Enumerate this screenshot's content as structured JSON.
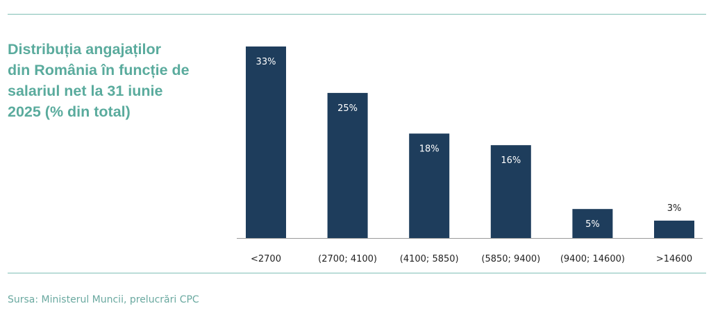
{
  "title_lines": [
    "Distribuția angajaților",
    "din România în funcție de",
    "salariul net la 31 iunie",
    "2025 (% din total)"
  ],
  "source": "Sursa: Ministerul Muncii, prelucrări CPC",
  "colors": {
    "bar": "#1e3d5c",
    "accent": "#5aab9d",
    "rule": "#7fbfb5",
    "axis": "#999999"
  },
  "chart_data": {
    "type": "bar",
    "title": "Distribuția angajaților din România în funcție de salariul net la 31 iunie 2025 (% din total)",
    "categories": [
      "<2700",
      "(2700; 4100)",
      "(4100; 5850)",
      "(5850; 9400)",
      "(9400; 14600)",
      ">14600"
    ],
    "values": [
      33,
      25,
      18,
      16,
      5,
      3
    ],
    "data_labels": [
      "33%",
      "25%",
      "18%",
      "16%",
      "5%",
      "3%"
    ],
    "unit": "%",
    "ylim": [
      0,
      33
    ],
    "grid": false,
    "legend": "none"
  }
}
